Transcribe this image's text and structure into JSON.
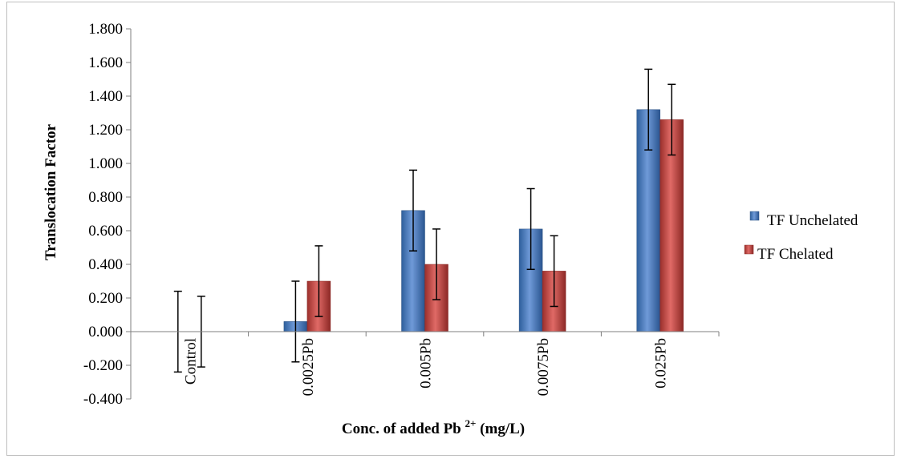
{
  "chart_data": {
    "type": "bar",
    "categories": [
      "Control",
      "0.0025Pb",
      "0.005Pb",
      "0.0075Pb",
      "0.025Pb"
    ],
    "series": [
      {
        "name": "TF Unchelated",
        "color": "#4f81bd",
        "values": [
          0.0,
          0.06,
          0.72,
          0.61,
          1.32
        ],
        "error": [
          0.24,
          0.24,
          0.24,
          0.24,
          0.24
        ]
      },
      {
        "name": "TF Chelated",
        "color": "#c0504d",
        "values": [
          0.0,
          0.3,
          0.4,
          0.36,
          1.26
        ],
        "error": [
          0.21,
          0.21,
          0.21,
          0.21,
          0.21
        ]
      }
    ],
    "ylim": [
      -0.4,
      1.8
    ],
    "yticks": [
      "-0.400",
      "-0.200",
      "0.000",
      "0.200",
      "0.400",
      "0.600",
      "0.800",
      "1.000",
      "1.200",
      "1.400",
      "1.600",
      "1.800"
    ],
    "xlabel": {
      "main": "Conc. of added Pb ",
      "sup": "2+",
      "tail": " (mg/L)"
    },
    "ylabel": "Translocation  Factor",
    "legend_position": "right",
    "grid": false
  }
}
